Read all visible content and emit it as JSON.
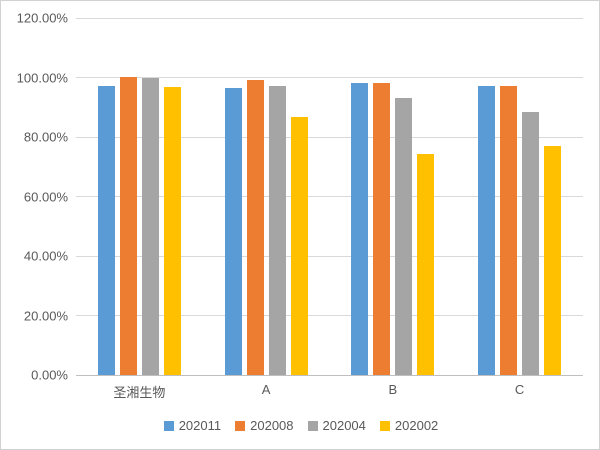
{
  "chart_data": {
    "type": "bar",
    "title": "",
    "categories": [
      "圣湘生物",
      "A",
      "B",
      "C"
    ],
    "series": [
      {
        "name": "202011",
        "color": "#5B9BD5",
        "values": [
          97.3,
          96.5,
          98.0,
          97.2
        ]
      },
      {
        "name": "202008",
        "color": "#ED7D31",
        "values": [
          100.3,
          99.2,
          98.2,
          97.3
        ]
      },
      {
        "name": "202004",
        "color": "#A5A5A5",
        "values": [
          100.0,
          97.3,
          93.0,
          88.5
        ]
      },
      {
        "name": "202002",
        "color": "#FFC000",
        "values": [
          96.7,
          86.6,
          74.3,
          77.0
        ]
      }
    ],
    "ylim": [
      0,
      120
    ],
    "ytick_step": 20,
    "ytick_labels": [
      "0.00%",
      "20.00%",
      "40.00%",
      "60.00%",
      "80.00%",
      "100.00%",
      "120.00%"
    ],
    "value_unit": "percent",
    "grid": true,
    "legend_position": "bottom"
  },
  "colors": {
    "gridline": "#d9d9d9",
    "axis_line": "#bfbfbf",
    "label_text": "#595959",
    "border": "#d2d2d2",
    "background": "#ffffff"
  }
}
